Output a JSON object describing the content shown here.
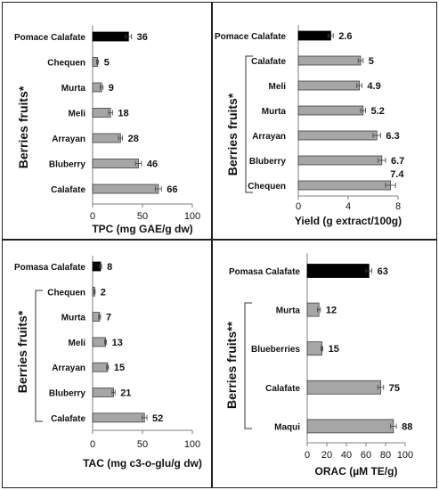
{
  "colors": {
    "highlight": "#000000",
    "bar": "#a6a6a6",
    "bar_stroke": "#3f3f3f",
    "axis": "#7f7f7f",
    "error_bar": "#404040"
  },
  "chart_data": [
    {
      "type": "bar",
      "orientation": "horizontal",
      "categories": [
        "Pomace Calafate",
        "Chequen",
        "Murta",
        "Meli",
        "Arrayan",
        "Bluberry",
        "Calafate"
      ],
      "values": [
        36,
        5,
        9,
        18,
        28,
        46,
        66
      ],
      "value_labels": [
        "36",
        "5",
        "9",
        "18",
        "28",
        "46",
        "66"
      ],
      "highlight": [
        true,
        false,
        false,
        false,
        false,
        false,
        false
      ],
      "errors": [
        3,
        1,
        1.5,
        2,
        2,
        3,
        3
      ],
      "xlabel": "TPC (mg GAE/g dw)",
      "group_label": "Berries fruits*",
      "xlim": [
        0,
        100
      ],
      "xticks": [
        "0",
        "50",
        "100"
      ],
      "grid": false
    },
    {
      "type": "bar",
      "orientation": "horizontal",
      "categories": [
        "Pomace Calafate",
        "Calafate",
        "Meli",
        "Murta",
        "Arrayan",
        "Bluberry",
        "Chequen"
      ],
      "values": [
        2.6,
        5,
        4.9,
        5.2,
        6.3,
        6.7,
        7.4
      ],
      "value_labels": [
        "2.6",
        "5",
        "4.9",
        "5.2",
        "6.3",
        "6.7",
        "7.4"
      ],
      "highlight": [
        true,
        false,
        false,
        false,
        false,
        false,
        false
      ],
      "errors": [
        0.2,
        0.2,
        0.2,
        0.2,
        0.3,
        0.3,
        0.4
      ],
      "xlabel": "Yield (g extract/100g)",
      "group_label": "Berries fruits*",
      "xlim": [
        0,
        8
      ],
      "xticks": [
        "0",
        "4",
        "8"
      ],
      "grid": false
    },
    {
      "type": "bar",
      "orientation": "horizontal",
      "categories": [
        "Pomasa Calafate",
        "Chequen",
        "Murta",
        "Meli",
        "Arrayan",
        "Bluberry",
        "Calafate"
      ],
      "values": [
        8,
        2,
        7,
        13,
        15,
        21,
        52
      ],
      "value_labels": [
        "8",
        "2",
        "7",
        "13",
        "15",
        "21",
        "52"
      ],
      "highlight": [
        true,
        false,
        false,
        false,
        false,
        false,
        false
      ],
      "errors": [
        1,
        0.5,
        1,
        1,
        1,
        1.5,
        2.5
      ],
      "xlabel": "TAC (mg c3-o-glu/g dw)",
      "group_label": "Berries fruits*",
      "xlim": [
        0,
        100
      ],
      "xticks": [
        "0",
        "50",
        "100"
      ],
      "grid": false
    },
    {
      "type": "bar",
      "orientation": "horizontal",
      "categories": [
        "Pomasa Calafate",
        "Murta",
        "Blueberries",
        "Calafate",
        "Maqui"
      ],
      "values": [
        63,
        12,
        15,
        75,
        88
      ],
      "value_labels": [
        "63",
        "12",
        "15",
        "75",
        "88"
      ],
      "highlight": [
        true,
        false,
        false,
        false,
        false
      ],
      "errors": [
        3,
        1.5,
        1,
        3,
        3
      ],
      "xlabel": "ORAC (µM TE/g)",
      "group_label": "Berries fruits**",
      "xlim": [
        0,
        100
      ],
      "xticks": [
        "0",
        "20",
        "40",
        "60",
        "80",
        "100"
      ],
      "grid": false
    }
  ]
}
